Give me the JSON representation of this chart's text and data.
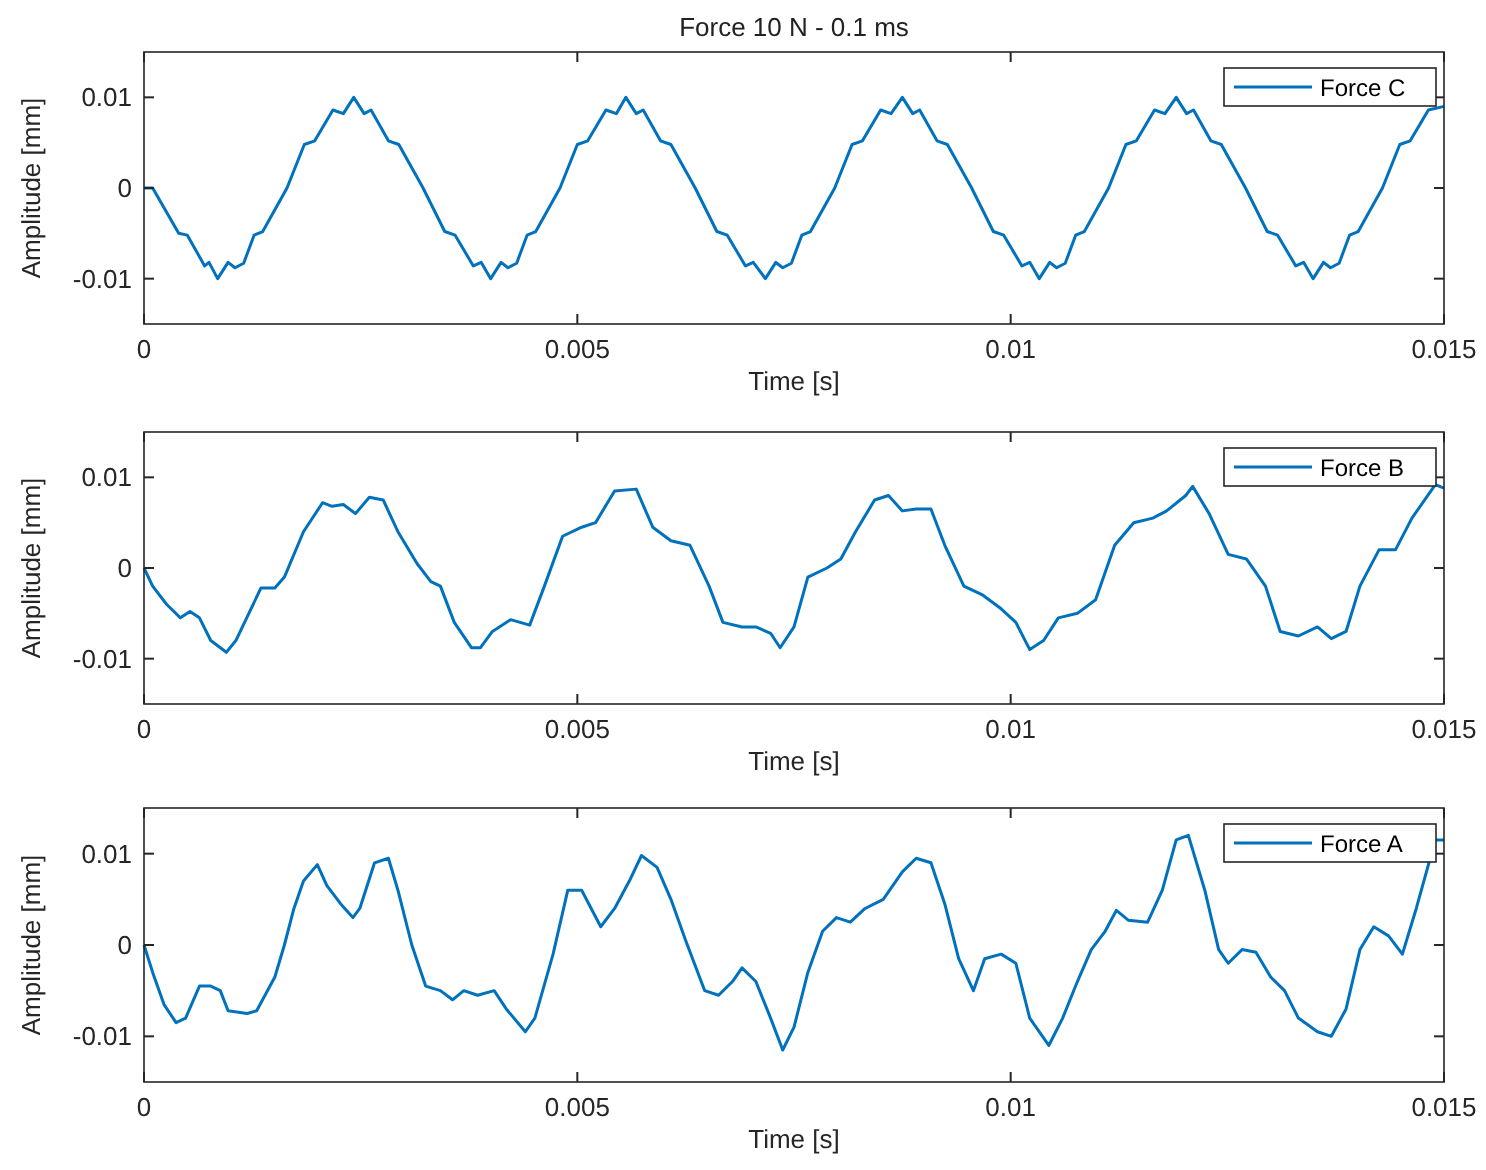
{
  "chart_data": [
    {
      "type": "line",
      "title": "Force 10 N - 0.1 ms",
      "xlabel": "Time [s]",
      "ylabel": "Amplitude [mm]",
      "xlim": [
        0,
        0.015
      ],
      "xticks": [
        0,
        0.005,
        0.01,
        0.015
      ],
      "ylim": [
        -0.015,
        0.015
      ],
      "yticks": [
        -0.01,
        0,
        0.01
      ],
      "grid": false,
      "legend": "top right",
      "line_style": "solid",
      "marker": "none",
      "series": [
        {
          "name": "Force C",
          "color": "#0072bd",
          "x": [
            0,
            0.0001,
            0.0004,
            0.0005,
            0.0007,
            0.00075,
            0.00085,
            0.00097,
            0.00105,
            0.00115,
            0.00127,
            0.00137,
            0.00165,
            0.00185,
            0.00197,
            0.00218,
            0.0023,
            0.00242,
            0.00254,
            0.00262,
            0.00282,
            0.00294,
            0.00322,
            0.00347,
            0.00359,
            0.0038,
            0.00389,
            0.004,
            0.00412,
            0.0042,
            0.0043,
            0.00442,
            0.00452,
            0.0048,
            0.005,
            0.00512,
            0.00533,
            0.00545,
            0.00556,
            0.00568,
            0.00576,
            0.00596,
            0.00608,
            0.00636,
            0.00661,
            0.00673,
            0.00694,
            0.00703,
            0.00717,
            0.00729,
            0.00737,
            0.00747,
            0.00759,
            0.00769,
            0.00797,
            0.00817,
            0.00829,
            0.0085,
            0.00862,
            0.00875,
            0.00887,
            0.00895,
            0.00915,
            0.00927,
            0.00955,
            0.0098,
            0.00992,
            0.01013,
            0.01022,
            0.01033,
            0.01045,
            0.01053,
            0.01063,
            0.01075,
            0.01085,
            0.01113,
            0.01133,
            0.01145,
            0.01166,
            0.01178,
            0.01191,
            0.01203,
            0.01211,
            0.01231,
            0.01243,
            0.01271,
            0.01296,
            0.01308,
            0.01329,
            0.01338,
            0.01349,
            0.01361,
            0.01369,
            0.01379,
            0.01391,
            0.01401,
            0.01429,
            0.01449,
            0.01461,
            0.01482,
            0.015
          ],
          "values": [
            0,
            0,
            -0.005,
            -0.0052,
            -0.0086,
            -0.0082,
            -0.01,
            -0.0082,
            -0.0088,
            -0.0083,
            -0.0052,
            -0.0048,
            0,
            0.0048,
            0.0052,
            0.0086,
            0.0082,
            0.01,
            0.0082,
            0.0086,
            0.0052,
            0.0048,
            0,
            -0.0048,
            -0.0052,
            -0.0086,
            -0.0082,
            -0.01,
            -0.0082,
            -0.0088,
            -0.0083,
            -0.0052,
            -0.0048,
            0,
            0.0048,
            0.0052,
            0.0086,
            0.0082,
            0.01,
            0.0082,
            0.0086,
            0.0052,
            0.0048,
            0,
            -0.0048,
            -0.0052,
            -0.0086,
            -0.0082,
            -0.01,
            -0.0082,
            -0.0088,
            -0.0083,
            -0.0052,
            -0.0048,
            0,
            0.0048,
            0.0052,
            0.0086,
            0.0082,
            0.01,
            0.0082,
            0.0086,
            0.0052,
            0.0048,
            0,
            -0.0048,
            -0.0052,
            -0.0086,
            -0.0082,
            -0.01,
            -0.0082,
            -0.0088,
            -0.0083,
            -0.0052,
            -0.0048,
            0,
            0.0048,
            0.0052,
            0.0086,
            0.0082,
            0.01,
            0.0082,
            0.0086,
            0.0052,
            0.0048,
            0,
            -0.0048,
            -0.0052,
            -0.0086,
            -0.0082,
            -0.01,
            -0.0082,
            -0.0088,
            -0.0083,
            -0.0052,
            -0.0048,
            0,
            0.0048,
            0.0052,
            0.0086,
            0.009
          ]
        }
      ]
    },
    {
      "type": "line",
      "xlabel": "Time [s]",
      "ylabel": "Amplitude [mm]",
      "xlim": [
        0,
        0.015
      ],
      "xticks": [
        0,
        0.005,
        0.01,
        0.015
      ],
      "ylim": [
        -0.015,
        0.015
      ],
      "yticks": [
        -0.01,
        0,
        0.01
      ],
      "grid": false,
      "legend": "top right",
      "line_style": "solid",
      "marker": "none",
      "series": [
        {
          "name": "Force B",
          "color": "#0072bd",
          "x": [
            0,
            0.0001,
            0.00026,
            0.00042,
            0.00053,
            0.00064,
            0.00077,
            0.00095,
            0.00106,
            0.00121,
            0.00135,
            0.00151,
            0.00162,
            0.00184,
            0.00206,
            0.00217,
            0.0023,
            0.00244,
            0.0026,
            0.00276,
            0.00293,
            0.00315,
            0.00331,
            0.00342,
            0.00358,
            0.00378,
            0.00388,
            0.00402,
            0.00423,
            0.00445,
            0.00462,
            0.00483,
            0.00505,
            0.00521,
            0.00543,
            0.00568,
            0.00587,
            0.00608,
            0.0063,
            0.00652,
            0.00668,
            0.0069,
            0.00706,
            0.00723,
            0.00734,
            0.0075,
            0.00766,
            0.00788,
            0.00804,
            0.00821,
            0.00843,
            0.00859,
            0.00875,
            0.00891,
            0.00908,
            0.00924,
            0.00946,
            0.00968,
            0.00989,
            0.01006,
            0.01022,
            0.01038,
            0.01055,
            0.01077,
            0.01098,
            0.0112,
            0.01142,
            0.01164,
            0.0118,
            0.01202,
            0.0121,
            0.01229,
            0.01251,
            0.01272,
            0.01294,
            0.01311,
            0.01332,
            0.01354,
            0.0137,
            0.01387,
            0.01403,
            0.01425,
            0.01444,
            0.01463,
            0.0149,
            0.015
          ],
          "values": [
            0,
            -0.002,
            -0.004,
            -0.0055,
            -0.0048,
            -0.0055,
            -0.008,
            -0.0093,
            -0.008,
            -0.005,
            -0.0022,
            -0.0022,
            -0.001,
            0.004,
            0.0072,
            0.0068,
            0.007,
            0.006,
            0.0078,
            0.0075,
            0.004,
            0.0005,
            -0.0015,
            -0.002,
            -0.006,
            -0.0088,
            -0.0088,
            -0.007,
            -0.0057,
            -0.0063,
            -0.002,
            0.0035,
            0.0045,
            0.005,
            0.0085,
            0.0087,
            0.0045,
            0.003,
            0.0025,
            -0.002,
            -0.006,
            -0.0065,
            -0.0065,
            -0.0072,
            -0.0088,
            -0.0065,
            -0.001,
            0,
            0.001,
            0.004,
            0.0075,
            0.008,
            0.0063,
            0.0065,
            0.0065,
            0.0025,
            -0.002,
            -0.003,
            -0.0045,
            -0.006,
            -0.009,
            -0.008,
            -0.0055,
            -0.005,
            -0.0035,
            0.0025,
            0.005,
            0.0055,
            0.0063,
            0.008,
            0.009,
            0.006,
            0.0015,
            0.001,
            -0.002,
            -0.007,
            -0.0075,
            -0.0065,
            -0.0078,
            -0.007,
            -0.002,
            0.002,
            0.002,
            0.0055,
            0.0092,
            0.0088
          ]
        }
      ]
    },
    {
      "type": "line",
      "xlabel": "Time [s]",
      "ylabel": "Amplitude [mm]",
      "xlim": [
        0,
        0.015
      ],
      "xticks": [
        0,
        0.005,
        0.01,
        0.015
      ],
      "ylim": [
        -0.015,
        0.015
      ],
      "yticks": [
        -0.01,
        0,
        0.01
      ],
      "grid": false,
      "legend": "top right",
      "line_style": "solid",
      "marker": "none",
      "series": [
        {
          "name": "Force A",
          "color": "#0072bd",
          "x": [
            0,
            0.0001,
            0.00023,
            0.00037,
            0.00048,
            0.00064,
            0.00077,
            0.00088,
            0.00097,
            0.00119,
            0.0013,
            0.00151,
            0.00162,
            0.00173,
            0.00184,
            0.002,
            0.00211,
            0.00227,
            0.00241,
            0.00249,
            0.00266,
            0.00282,
            0.00293,
            0.00309,
            0.00325,
            0.00342,
            0.00356,
            0.00369,
            0.00385,
            0.00404,
            0.00418,
            0.0044,
            0.00451,
            0.00472,
            0.00489,
            0.00505,
            0.00527,
            0.00543,
            0.0056,
            0.00574,
            0.00592,
            0.00608,
            0.00625,
            0.00647,
            0.00663,
            0.00679,
            0.0069,
            0.00706,
            0.00723,
            0.00737,
            0.0075,
            0.00766,
            0.00783,
            0.00799,
            0.00815,
            0.00832,
            0.00853,
            0.00875,
            0.00891,
            0.00908,
            0.00924,
            0.0094,
            0.00957,
            0.0097,
            0.00989,
            0.01006,
            0.01022,
            0.01044,
            0.0106,
            0.01077,
            0.01093,
            0.01109,
            0.01122,
            0.01136,
            0.01158,
            0.01175,
            0.01191,
            0.01205,
            0.01224,
            0.0124,
            0.01251,
            0.01267,
            0.01283,
            0.013,
            0.01316,
            0.01332,
            0.01354,
            0.0137,
            0.01387,
            0.01403,
            0.01419,
            0.01436,
            0.01452,
            0.01468,
            0.0149,
            0.015
          ],
          "values": [
            0,
            -0.003,
            -0.0065,
            -0.0085,
            -0.008,
            -0.0045,
            -0.0045,
            -0.005,
            -0.0072,
            -0.0075,
            -0.0072,
            -0.0035,
            0,
            0.004,
            0.007,
            0.0088,
            0.0065,
            0.0045,
            0.003,
            0.004,
            0.009,
            0.0095,
            0.006,
            0,
            -0.0045,
            -0.005,
            -0.006,
            -0.005,
            -0.0055,
            -0.005,
            -0.007,
            -0.0095,
            -0.008,
            -0.001,
            0.006,
            0.006,
            0.002,
            0.004,
            0.007,
            0.0098,
            0.0085,
            0.005,
            0.0005,
            -0.005,
            -0.0055,
            -0.004,
            -0.0025,
            -0.004,
            -0.008,
            -0.0115,
            -0.009,
            -0.003,
            0.0015,
            0.003,
            0.0025,
            0.004,
            0.005,
            0.008,
            0.0095,
            0.009,
            0.0045,
            -0.0015,
            -0.005,
            -0.0015,
            -0.001,
            -0.002,
            -0.008,
            -0.011,
            -0.008,
            -0.004,
            -0.0005,
            0.0015,
            0.0038,
            0.0027,
            0.0025,
            0.006,
            0.0115,
            0.012,
            0.006,
            -0.0005,
            -0.002,
            -0.0005,
            -0.0008,
            -0.0035,
            -0.005,
            -0.008,
            -0.0095,
            -0.01,
            -0.007,
            -0.0005,
            0.002,
            0.001,
            -0.001,
            0.004,
            0.0115,
            0.0115
          ]
        }
      ]
    }
  ]
}
